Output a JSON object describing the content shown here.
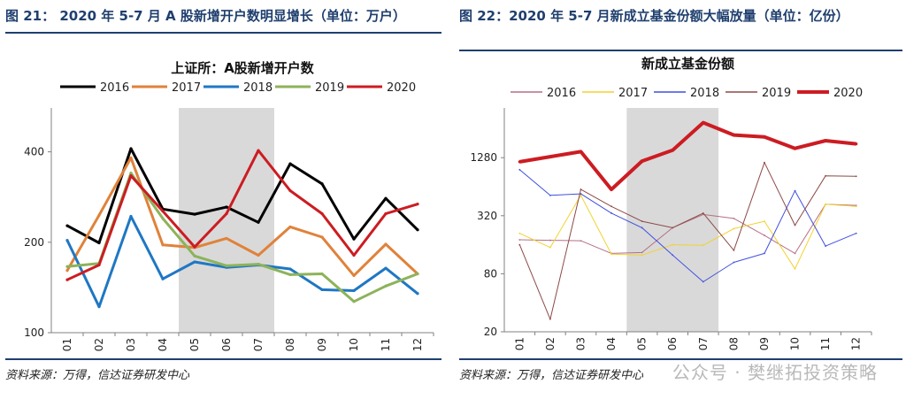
{
  "left": {
    "figure_title": "图 21： 2020 年 5-7 月 A 股新增开户数明显增长（单位：万户）",
    "source": "资料来源：万得，信达证券研发中心"
  },
  "right": {
    "figure_title": "图 22：2020 年 5-7 月新成立基金份额大幅放量（单位：亿份）",
    "source": "资料来源：万得，信达证券研发中心"
  },
  "watermark": "公众号 · 樊继拓投资策略",
  "chart_data": [
    {
      "type": "line",
      "title": "上证所：A股新增开户数",
      "xlabel": "",
      "ylabel": "",
      "y_scale": "log",
      "ylim": [
        100,
        560
      ],
      "yticks": [
        100,
        200,
        400
      ],
      "categories": [
        "01",
        "02",
        "03",
        "04",
        "05",
        "06",
        "07",
        "08",
        "09",
        "10",
        "11",
        "12"
      ],
      "highlight": {
        "from": "05",
        "to": "07",
        "color": "#d9d9d9"
      },
      "legend_position": "top",
      "series": [
        {
          "name": "2016",
          "color": "#000000",
          "width": 3,
          "values": [
            227,
            199,
            410,
            258,
            248,
            262,
            233,
            365,
            313,
            205,
            280,
            220
          ]
        },
        {
          "name": "2017",
          "color": "#e0823a",
          "width": 3,
          "values": [
            161,
            246,
            382,
            196,
            192,
            206,
            181,
            225,
            208,
            155,
            197,
            157
          ]
        },
        {
          "name": "2018",
          "color": "#1f77c4",
          "width": 3,
          "values": [
            203,
            122,
            244,
            151,
            172,
            165,
            168,
            163,
            139,
            138,
            164,
            135
          ]
        },
        {
          "name": "2019",
          "color": "#8db35a",
          "width": 3,
          "values": [
            166,
            170,
            340,
            240,
            180,
            167,
            169,
            156,
            157,
            127,
            143,
            157
          ]
        },
        {
          "name": "2020",
          "color": "#cc1c22",
          "width": 3,
          "values": [
            150,
            168,
            333,
            254,
            193,
            249,
            404,
            297,
            249,
            181,
            249,
            268
          ]
        }
      ]
    },
    {
      "type": "line",
      "title": "新成立基金份额",
      "xlabel": "",
      "ylabel": "",
      "y_scale": "log",
      "ylim": [
        20,
        4200
      ],
      "yticks": [
        20,
        80,
        320,
        1280
      ],
      "categories": [
        "01",
        "02",
        "03",
        "04",
        "05",
        "06",
        "07",
        "08",
        "09",
        "10",
        "11",
        "12"
      ],
      "highlight": {
        "from": "05",
        "to": "07",
        "color": "#d9d9d9"
      },
      "legend_position": "top",
      "series": [
        {
          "name": "2016",
          "color": "#b56f84",
          "width": 1,
          "values": [
            180,
            178,
            176,
            130,
            133,
            240,
            330,
            300,
            200,
            130,
            420,
            410
          ]
        },
        {
          "name": "2017",
          "color": "#f2d22e",
          "width": 1,
          "values": [
            210,
            150,
            520,
            128,
            125,
            160,
            158,
            235,
            280,
            90,
            420,
            400
          ]
        },
        {
          "name": "2018",
          "color": "#3f4fe0",
          "width": 1,
          "values": [
            960,
            520,
            540,
            340,
            240,
            125,
            66,
            105,
            130,
            580,
            155,
            210
          ]
        },
        {
          "name": "2019",
          "color": "#8b4a46",
          "width": 1,
          "values": [
            160,
            27,
            600,
            400,
            280,
            240,
            340,
            140,
            1140,
            255,
            830,
            820
          ]
        },
        {
          "name": "2020",
          "color": "#cc1c22",
          "width": 4,
          "values": [
            1160,
            1310,
            1480,
            600,
            1180,
            1530,
            2960,
            2200,
            2100,
            1600,
            1920,
            1780
          ]
        }
      ]
    }
  ]
}
